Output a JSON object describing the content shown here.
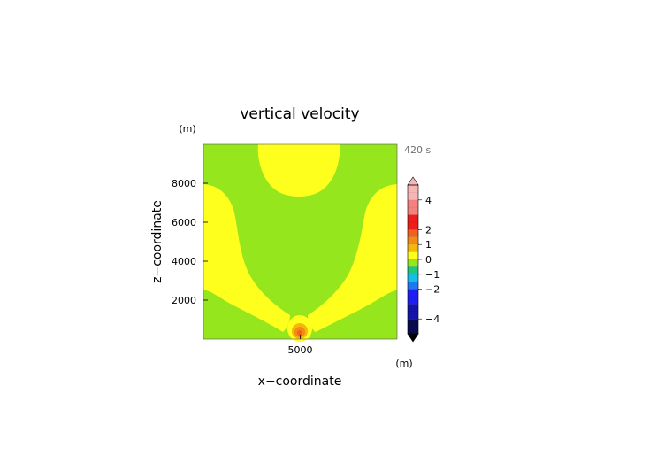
{
  "chart_data": {
    "type": "heatmap",
    "title": "vertical velocity",
    "time_label": "420 s",
    "xlabel": "x−coordinate",
    "ylabel": "z−coordinate",
    "x_unit": "(m)",
    "z_unit": "(m)",
    "xlim": [
      0,
      10000
    ],
    "ylim": [
      0,
      10000
    ],
    "x_ticks": [
      {
        "value": 5000,
        "label": "5000"
      }
    ],
    "y_ticks": [
      {
        "value": 2000,
        "label": "2000"
      },
      {
        "value": 4000,
        "label": "4000"
      },
      {
        "value": 6000,
        "label": "6000"
      },
      {
        "value": 8000,
        "label": "8000"
      }
    ],
    "colorbar": {
      "range": [
        -5,
        5
      ],
      "ticks": [
        {
          "value": 4,
          "label": "4"
        },
        {
          "value": 2,
          "label": "2"
        },
        {
          "value": 1,
          "label": "1"
        },
        {
          "value": 0,
          "label": "0"
        },
        {
          "value": -1,
          "label": "−1"
        },
        {
          "value": -2,
          "label": "−2"
        },
        {
          "value": -4,
          "label": "−4"
        }
      ],
      "bands": [
        {
          "from": 4,
          "to": 5,
          "color": "#f7b5b5"
        },
        {
          "from": 3,
          "to": 4,
          "color": "#f48080"
        },
        {
          "from": 2,
          "to": 3,
          "color": "#ee1c1c"
        },
        {
          "from": 1.5,
          "to": 2,
          "color": "#f0601e"
        },
        {
          "from": 1,
          "to": 1.5,
          "color": "#f08c14"
        },
        {
          "from": 0.5,
          "to": 1,
          "color": "#f5b80a"
        },
        {
          "from": 0,
          "to": 0.5,
          "color": "#ffff1e"
        },
        {
          "from": -0.5,
          "to": 0,
          "color": "#96e61e"
        },
        {
          "from": -1,
          "to": -0.5,
          "color": "#1ec878"
        },
        {
          "from": -1.5,
          "to": -1,
          "color": "#14bee6"
        },
        {
          "from": -2,
          "to": -1.5,
          "color": "#1e78f0"
        },
        {
          "from": -3,
          "to": -2,
          "color": "#1e1ef5"
        },
        {
          "from": -4,
          "to": -3,
          "color": "#1414aa"
        },
        {
          "from": -5,
          "to": -4,
          "color": "#0a0a50"
        }
      ]
    },
    "regions": [
      {
        "value_range": [
          -0.5,
          0
        ],
        "color": "#96e61e",
        "description": "background field"
      },
      {
        "value_range": [
          0,
          0.5
        ],
        "color": "#ffff1e",
        "description": "top-center lobe, left and right upper lobes, diagonal arms to plume base"
      },
      {
        "value_range": [
          0.5,
          2
        ],
        "color": "#f08c14",
        "description": "plume core near x=5000, z=400"
      }
    ]
  }
}
